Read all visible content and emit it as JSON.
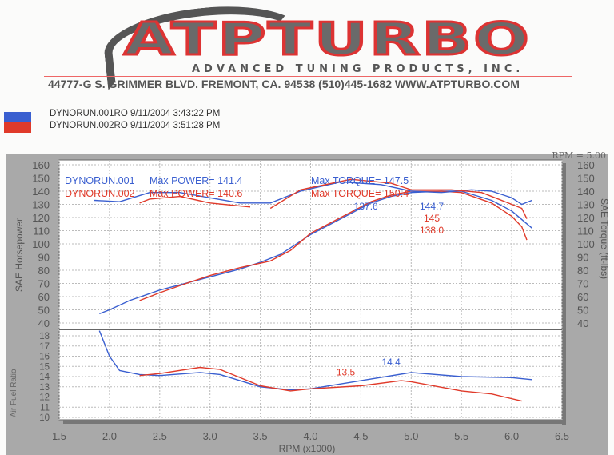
{
  "header": {
    "logo": "ATPTURBO",
    "subtitle": "ADVANCED TUNING PRODUCTS, INC.",
    "address": "44777-G S. GRIMMER BLVD. FREMONT, CA. 94538 (510)445-1682 WWW.ATPTURBO.COM"
  },
  "legend": [
    {
      "label": "DYNORUN.001RO  9/11/2004 3:43:22 PM",
      "color": "#3a5fd0"
    },
    {
      "label": "DYNORUN.002RO  9/11/2004 3:51:28 PM",
      "color": "#e03a2a"
    }
  ],
  "chart_data": {
    "type": "line",
    "corner_label": "RPM = 5.00",
    "xlabel": "RPM (x1000)",
    "xlim": [
      1.5,
      6.5
    ],
    "xticks": [
      "1.5",
      "2.0",
      "2.5",
      "3.0",
      "3.5",
      "4.0",
      "4.5",
      "5.0",
      "5.5",
      "6.0",
      "6.5"
    ],
    "ylabel_left": "SAE Horsepower",
    "ylabel_right": "SAE Torque (ft-lbs)",
    "ylim": [
      40,
      160
    ],
    "yticks": [
      "160",
      "150",
      "140",
      "130",
      "120",
      "110",
      "100",
      "90",
      "80",
      "70",
      "60",
      "50",
      "40"
    ],
    "afr_label": "Air Fuel Ratio",
    "afr_ylim": [
      10,
      18
    ],
    "afr_ticks": [
      "18",
      "17",
      "16",
      "15",
      "14",
      "13",
      "12",
      "11",
      "10"
    ],
    "run_text": [
      {
        "run": "DYNORUN.001",
        "power": "Max POWER= 141.4",
        "torque": "Max TORQUE= 147.5",
        "color": "#3a5fd0"
      },
      {
        "run": "DYNORUN.002",
        "power": "Max POWER= 140.6",
        "torque": "Max TORQUE= 150.4",
        "color": "#e03a2a"
      }
    ],
    "series": [
      {
        "name": "DYNORUN.001 Horsepower",
        "color": "#3a5fd0",
        "panel": "main",
        "x": [
          1.9,
          2.0,
          2.2,
          2.5,
          2.8,
          3.0,
          3.3,
          3.5,
          3.7,
          4.0,
          4.3,
          4.6,
          4.8,
          5.0,
          5.3,
          5.5,
          5.8,
          6.0,
          6.2
        ],
        "y": [
          47,
          50,
          57,
          65,
          71,
          75,
          81,
          86,
          92,
          107,
          119,
          131,
          136,
          139,
          140,
          140,
          133,
          125,
          112
        ]
      },
      {
        "name": "DYNORUN.002 Horsepower",
        "color": "#e03a2a",
        "panel": "main",
        "x": [
          2.3,
          2.5,
          2.8,
          3.0,
          3.3,
          3.6,
          3.8,
          4.0,
          4.3,
          4.6,
          4.8,
          5.0,
          5.3,
          5.5,
          5.8,
          6.0,
          6.1,
          6.15
        ],
        "y": [
          57,
          63,
          71,
          76,
          82,
          87,
          95,
          108,
          120,
          132,
          137,
          140,
          140,
          139,
          131,
          121,
          113,
          103
        ]
      },
      {
        "name": "DYNORUN.001 Torque",
        "color": "#3a5fd0",
        "panel": "main",
        "x": [
          1.85,
          2.1,
          2.4,
          2.7,
          3.0,
          3.3,
          3.6,
          3.9,
          4.3,
          4.7,
          5.0,
          5.3,
          5.6,
          5.8,
          6.0,
          6.1,
          6.2
        ],
        "y": [
          133,
          132,
          139,
          139,
          135,
          131,
          131,
          140,
          147,
          145,
          140,
          139,
          141,
          140,
          135,
          130,
          133
        ]
      },
      {
        "name": "DYNORUN.002 Torque",
        "color": "#e03a2a",
        "panel": "main",
        "x": [
          2.3,
          2.4,
          2.7,
          3.0,
          3.4
        ],
        "y": [
          131,
          134,
          136,
          131,
          128
        ]
      },
      {
        "name": "DYNORUN.002 Torque (cont.)",
        "color": "#e03a2a",
        "panel": "main",
        "x": [
          3.6,
          3.9,
          4.4,
          4.8,
          5.0,
          5.4,
          5.7,
          6.0,
          6.1,
          6.15
        ],
        "y": [
          127,
          141,
          149,
          146,
          141,
          141,
          139,
          130,
          127,
          119
        ]
      },
      {
        "name": "DYNORUN.001 AFR",
        "color": "#3a5fd0",
        "panel": "afr",
        "x": [
          1.9,
          2.0,
          2.1,
          2.3,
          2.5,
          2.9,
          3.1,
          3.5,
          3.8,
          4.0,
          4.5,
          5.0,
          5.5,
          6.0,
          6.2
        ],
        "y": [
          18.5,
          16,
          14.6,
          14.2,
          14.1,
          14.4,
          14.2,
          13,
          12.7,
          12.8,
          13.6,
          14.4,
          14,
          13.9,
          13.7
        ]
      },
      {
        "name": "DYNORUN.002 AFR",
        "color": "#e03a2a",
        "panel": "afr",
        "x": [
          2.3,
          2.5,
          2.9,
          3.1,
          3.5,
          3.8,
          4.0,
          4.5,
          4.9,
          5.0,
          5.5,
          5.8,
          6.1
        ],
        "y": [
          14.1,
          14.3,
          14.9,
          14.7,
          13.1,
          12.6,
          12.8,
          13.1,
          13.6,
          13.5,
          12.6,
          12.3,
          11.6
        ]
      }
    ],
    "annotations": [
      {
        "text": "137.6",
        "x": 4.55,
        "y": 126,
        "panel": "main",
        "color": "#3a5fd0"
      },
      {
        "text": "144.7",
        "x": 4.85,
        "y": 142,
        "panel": "main",
        "color": "#3a5fd0"
      },
      {
        "text": "145",
        "x": 4.85,
        "y": 146,
        "panel": "main",
        "color": "#e03a2a"
      },
      {
        "text": "138.0",
        "x": 4.9,
        "y": 134,
        "panel": "main",
        "color": "#e03a2a"
      },
      {
        "text": "14.4",
        "x": 4.8,
        "y": 15.1,
        "panel": "afr",
        "color": "#3a5fd0"
      },
      {
        "text": "13.5",
        "x": 4.35,
        "y": 14.1,
        "panel": "afr",
        "color": "#e03a2a"
      }
    ]
  }
}
